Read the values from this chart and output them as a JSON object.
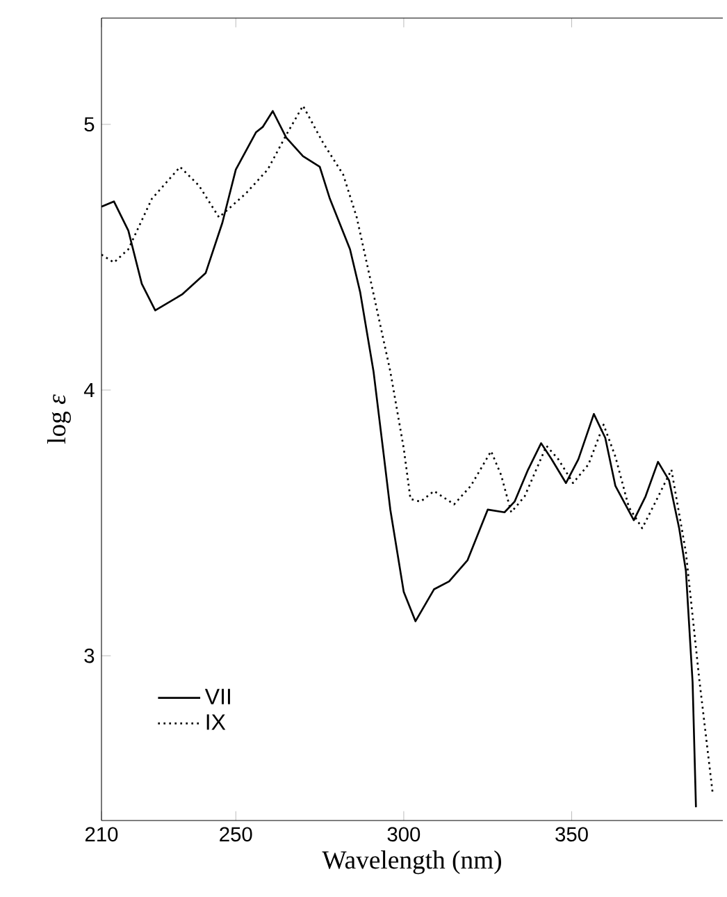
{
  "chart_data": {
    "type": "line",
    "xlabel": "Wavelength (nm)",
    "ylabel": "log *ε*",
    "xlim": [
      210,
      395
    ],
    "ylim": [
      2.38,
      5.4
    ],
    "xticks": [
      210,
      250,
      300,
      350
    ],
    "yticks": [
      3,
      4,
      5
    ],
    "legend": "bottom left",
    "grid": false,
    "series": [
      {
        "name": "VII",
        "color": "#000000",
        "line_style": "solid",
        "x": [
          210,
          213.7,
          218,
          222,
          226,
          234,
          241,
          246,
          250,
          256,
          258,
          261,
          265,
          270,
          275,
          278,
          284,
          287,
          291,
          294,
          296,
          300,
          303.5,
          309,
          313.5,
          319,
          325,
          330,
          333,
          337,
          340.9,
          344,
          348.3,
          352,
          356.6,
          360,
          363,
          368.5,
          372,
          375.7,
          379,
          382,
          384,
          386,
          387
        ],
        "values": [
          4.69,
          4.71,
          4.6,
          4.4,
          4.3,
          4.36,
          4.44,
          4.63,
          4.83,
          4.97,
          4.99,
          5.05,
          4.95,
          4.88,
          4.84,
          4.72,
          4.53,
          4.37,
          4.07,
          3.76,
          3.55,
          3.24,
          3.13,
          3.25,
          3.28,
          3.36,
          3.55,
          3.54,
          3.58,
          3.7,
          3.8,
          3.74,
          3.65,
          3.74,
          3.91,
          3.82,
          3.64,
          3.51,
          3.6,
          3.73,
          3.66,
          3.48,
          3.32,
          2.9,
          2.43
        ]
      },
      {
        "name": "IX",
        "color": "#000000",
        "line_style": "dotted",
        "x": [
          210,
          213.7,
          218,
          225,
          233.4,
          239,
          245,
          253,
          259.5,
          265,
          270,
          276,
          282,
          286,
          290,
          296,
          300,
          302,
          305,
          309,
          315,
          320,
          326,
          329,
          332,
          336,
          342.5,
          346,
          350.4,
          355,
          359.5,
          363,
          367,
          371,
          375,
          379.7,
          384,
          388,
          392
        ],
        "values": [
          4.51,
          4.48,
          4.53,
          4.72,
          4.84,
          4.77,
          4.65,
          4.74,
          4.83,
          4.96,
          5.07,
          4.93,
          4.81,
          4.65,
          4.42,
          4.07,
          3.78,
          3.59,
          3.58,
          3.62,
          3.57,
          3.64,
          3.77,
          3.68,
          3.54,
          3.6,
          3.79,
          3.74,
          3.65,
          3.72,
          3.87,
          3.75,
          3.56,
          3.48,
          3.58,
          3.7,
          3.39,
          2.91,
          2.48
        ]
      }
    ]
  }
}
